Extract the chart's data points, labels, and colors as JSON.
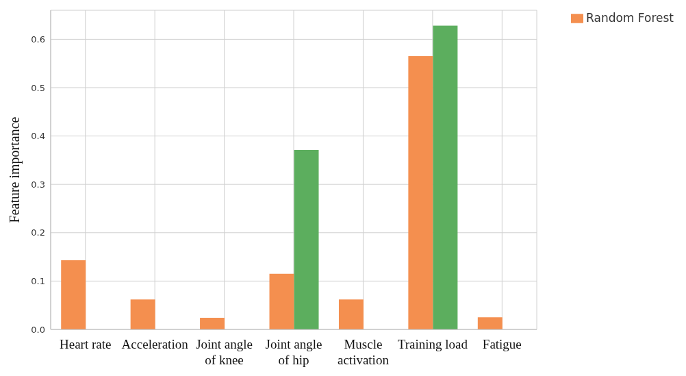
{
  "chart_data": {
    "type": "bar",
    "ylabel": "Feature importance",
    "categories": [
      "Heart rate",
      "Acceleration",
      "Joint angle\nof knee",
      "Joint angle\nof hip",
      "Muscle\nactivation",
      "Training load",
      "Fatigue"
    ],
    "series": [
      {
        "name": "Random Forest",
        "color": "#f48f4f",
        "values": [
          0.143,
          0.062,
          0.024,
          0.115,
          0.062,
          0.565,
          0.025
        ]
      },
      {
        "color": "#5cae5e",
        "values": [
          0,
          0,
          0,
          0.371,
          0,
          0.628,
          0
        ]
      }
    ],
    "ylim": [
      0,
      0.66
    ],
    "yticks": [
      {
        "value": 0,
        "label": "0.0"
      },
      0.1,
      0.2,
      0.3,
      0.4,
      0.5,
      0.6
    ],
    "grid": true,
    "legend": "top right"
  }
}
